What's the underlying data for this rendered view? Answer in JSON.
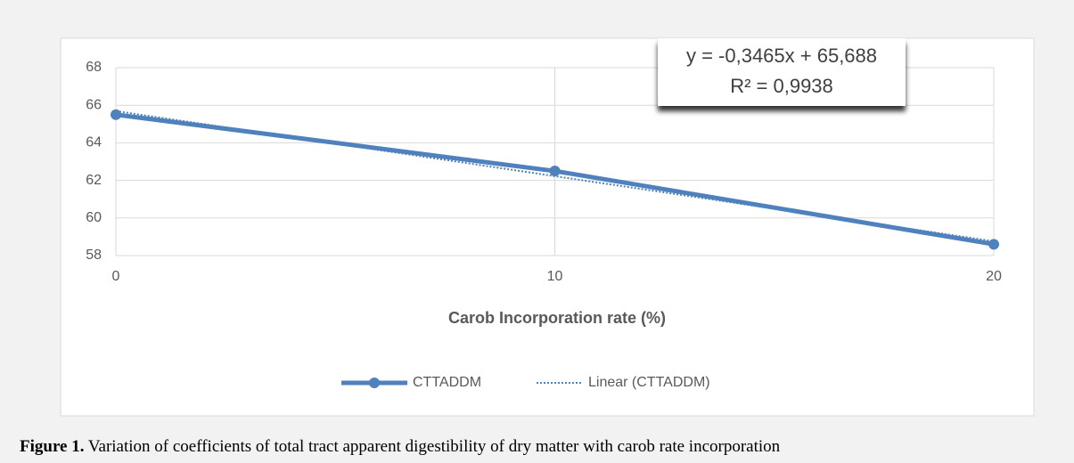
{
  "chart_data": {
    "type": "line",
    "xlabel": "Carob Incorporation rate (%)",
    "xlim": [
      0,
      20
    ],
    "xticks": [
      0,
      10,
      20
    ],
    "ylim": [
      58,
      68
    ],
    "yticks": [
      58,
      60,
      62,
      64,
      66,
      68
    ],
    "grid": true,
    "legend": "bottom",
    "series": [
      {
        "name": "CTTADDM",
        "color": "#4f81bd",
        "style": "solid",
        "markers": true,
        "x": [
          0,
          10,
          20
        ],
        "values": [
          65.5,
          62.5,
          58.6
        ]
      },
      {
        "name": "Linear (CTTADDM)",
        "color": "#4f81bd",
        "style": "dotted",
        "markers": false,
        "x": [
          0,
          20
        ],
        "values": [
          65.69,
          58.76
        ]
      }
    ],
    "annotations": [
      "y = -0,3465x + 65,688",
      "R² = 0,9938"
    ]
  },
  "caption": {
    "label": "Figure 1.",
    "text": " Variation of coefficients of total tract apparent digestibility of dry matter with carob rate incorporation"
  }
}
